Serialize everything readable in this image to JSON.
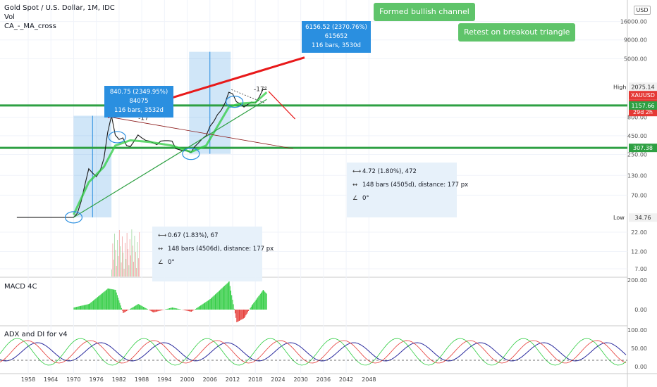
{
  "legend": {
    "symbol_line": "Gold Spot / U.S. Dollar, 1M, IDC",
    "vol": "Vol",
    "ma": "CA_-_MA_cross"
  },
  "currency_button": "USD",
  "macd_label": "MACD 4C",
  "adx_label": "ADX and DI for v4",
  "callouts": {
    "channel": "Formed bullish channel",
    "retest": "Retest on breakout triangle"
  },
  "measure_labels": {
    "first_line1": "840.75 (2349.95%) 84075",
    "first_line2": "116 bars, 3532d",
    "second_line1": "6156.52 (2370.76%) 615652",
    "second_line2": "116 bars, 3530d"
  },
  "tooltips": {
    "lower": {
      "range": "0.67 (1.83%), 67",
      "bars": "148 bars (4506d), distance: 177 px",
      "angle": "0°"
    },
    "upper": {
      "range": "4.72 (1.80%), 472",
      "bars": "148 bars (4505d), distance: 177 px",
      "angle": "0°"
    }
  },
  "angle_labels": [
    "-17°",
    "-17°"
  ],
  "price_badges": {
    "high_label": "High",
    "high_value": "2075.14",
    "symbol": "XAUUSD",
    "last": "1899.20",
    "countdown": "29d 2h",
    "level1": "1157.66",
    "level2": "307.38",
    "low_label": "Low",
    "low_value": "34.76"
  },
  "colors": {
    "up": "#2ecc40",
    "down": "#e53935",
    "resistance": "#e8191a",
    "support": "#2ea043",
    "measure": "#2a8fe0",
    "callout": "#5fc46a"
  },
  "chart_data": {
    "type": "line",
    "title": "Gold Spot / U.S. Dollar, 1M, IDC",
    "scale": "log",
    "x_axis_ticks": [
      "1958",
      "1964",
      "1970",
      "1976",
      "1982",
      "1988",
      "1994",
      "2000",
      "2006",
      "2012",
      "2018",
      "2024",
      "2030",
      "2036",
      "2042",
      "2048"
    ],
    "y_axis_ticks": [
      "16000.00",
      "9000.00",
      "5000.00",
      "800.00",
      "450.00",
      "250.00",
      "130.00",
      "70.00",
      "22.00",
      "12.00",
      "7.00"
    ],
    "macd_axis_ticks": [
      "200.00",
      "0.00"
    ],
    "adx_axis_ticks": [
      "100.00",
      "50.00",
      "0.00"
    ],
    "series": [
      {
        "name": "Gold Spot / U.S. Dollar",
        "x": [
          1955,
          1969,
          1970,
          1971,
          1972,
          1973,
          1974,
          1975,
          1976,
          1977,
          1978,
          1979,
          1980,
          1981,
          1982,
          1983,
          1984,
          1985,
          1986,
          1987,
          1988,
          1989,
          1990,
          1991,
          1992,
          1993,
          1994,
          1995,
          1996,
          1997,
          1998,
          1999,
          2000,
          2001,
          2002,
          2003,
          2004,
          2005,
          2006,
          2007,
          2008,
          2009,
          2010,
          2011,
          2012,
          2013,
          2014,
          2015,
          2016,
          2017,
          2018,
          2019,
          2020,
          2021
        ],
        "y": [
          35,
          35,
          35,
          40,
          58,
          98,
          160,
          140,
          125,
          150,
          220,
          500,
          840,
          460,
          400,
          420,
          330,
          320,
          380,
          460,
          420,
          390,
          380,
          360,
          340,
          380,
          385,
          385,
          380,
          300,
          290,
          280,
          280,
          265,
          320,
          360,
          410,
          450,
          600,
          700,
          870,
          1000,
          1250,
          1750,
          1670,
          1300,
          1220,
          1100,
          1200,
          1290,
          1250,
          1500,
          1900,
          1899
        ]
      }
    ],
    "levels": [
      1157.66,
      307.38
    ],
    "high": 2075.14,
    "low": 34.76,
    "last": 1899.2
  }
}
